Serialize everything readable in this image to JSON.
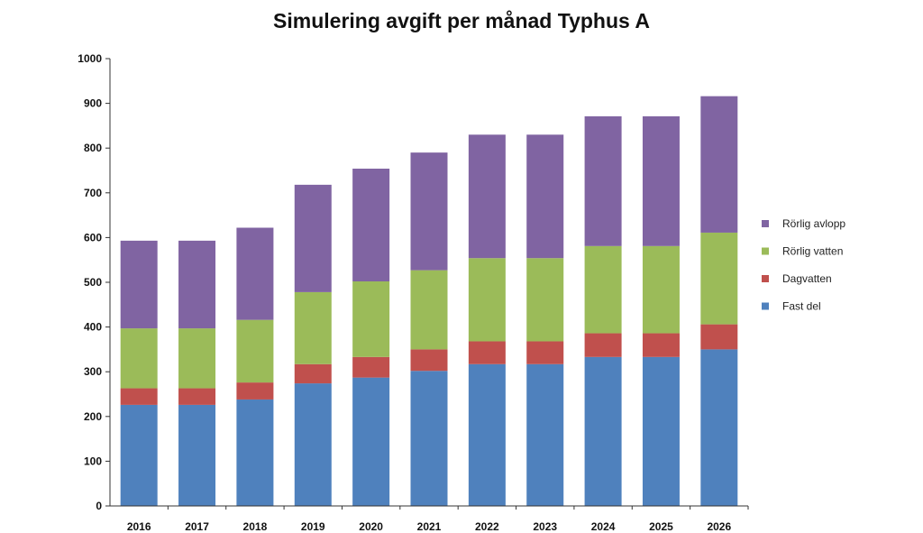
{
  "chart_data": {
    "type": "bar",
    "stacked": true,
    "title": "Simulering avgift per månad Typhus A",
    "xlabel": "",
    "ylabel": "",
    "categories": [
      "2016",
      "2017",
      "2018",
      "2019",
      "2020",
      "2021",
      "2022",
      "2023",
      "2024",
      "2025",
      "2026"
    ],
    "ylim": [
      0,
      1000
    ],
    "yticks": [
      0,
      100,
      200,
      300,
      400,
      500,
      600,
      700,
      800,
      900,
      1000
    ],
    "grid": false,
    "legend_position": "right",
    "series": [
      {
        "name": "Fast del",
        "color": "#4F81BD",
        "values": [
          226,
          226,
          238,
          274,
          287,
          302,
          317,
          317,
          333,
          333,
          350
        ]
      },
      {
        "name": "Dagvatten",
        "color": "#C0504D",
        "values": [
          37,
          37,
          38,
          43,
          46,
          48,
          51,
          51,
          53,
          53,
          56
        ]
      },
      {
        "name": "Rörlig vatten",
        "color": "#9BBB59",
        "values": [
          134,
          134,
          140,
          161,
          169,
          177,
          186,
          186,
          195,
          195,
          205
        ]
      },
      {
        "name": "Rörlig avlopp",
        "color": "#8064A2",
        "values": [
          196,
          196,
          206,
          240,
          252,
          263,
          276,
          276,
          290,
          290,
          305
        ]
      }
    ]
  }
}
